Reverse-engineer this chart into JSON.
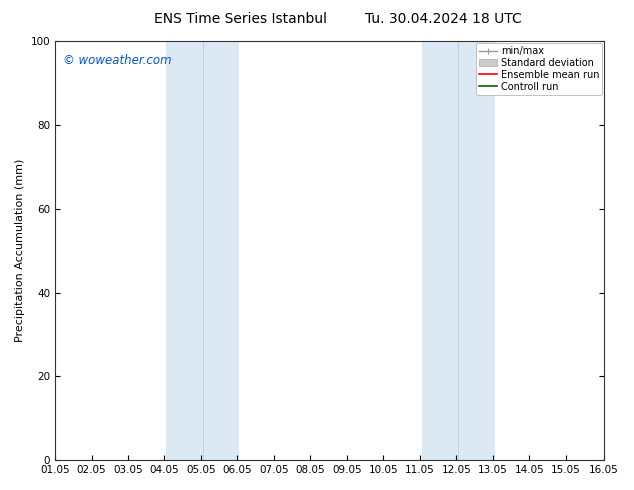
{
  "title_left": "ENS Time Series Istanbul",
  "title_right": "Tu. 30.04.2024 18 UTC",
  "ylabel": "Precipitation Accumulation (mm)",
  "ylim": [
    0,
    100
  ],
  "yticks": [
    0,
    20,
    40,
    60,
    80,
    100
  ],
  "x_start": 1.0,
  "x_end": 16.05,
  "xtick_labels": [
    "01.05",
    "02.05",
    "03.05",
    "04.05",
    "05.05",
    "06.05",
    "07.05",
    "08.05",
    "09.05",
    "10.05",
    "11.05",
    "12.05",
    "13.05",
    "14.05",
    "15.05",
    "16.05"
  ],
  "xtick_positions": [
    1.0,
    2.0,
    3.0,
    4.0,
    5.0,
    6.0,
    7.0,
    8.0,
    9.0,
    10.0,
    11.0,
    12.0,
    13.0,
    14.0,
    15.0,
    16.05
  ],
  "shaded_regions": [
    {
      "xmin": 4.05,
      "xmax": 5.05,
      "color": "#dce9f5"
    },
    {
      "xmin": 5.05,
      "xmax": 6.05,
      "color": "#dce9f5"
    },
    {
      "xmin": 11.05,
      "xmax": 12.05,
      "color": "#dce9f5"
    },
    {
      "xmin": 12.05,
      "xmax": 13.05,
      "color": "#dce9f5"
    }
  ],
  "shaded_dividers": [
    5.05,
    12.05
  ],
  "watermark_text": "© woweather.com",
  "watermark_color": "#0055cc",
  "background_color": "#ffffff",
  "legend_entries": [
    {
      "label": "min/max",
      "color": "#999999",
      "lw": 1.0
    },
    {
      "label": "Standard deviation",
      "color": "#cccccc",
      "lw": 5
    },
    {
      "label": "Ensemble mean run",
      "color": "#ff0000",
      "lw": 1.2
    },
    {
      "label": "Controll run",
      "color": "#006600",
      "lw": 1.2
    }
  ],
  "title_fontsize": 10,
  "axis_label_fontsize": 8,
  "tick_fontsize": 7.5,
  "legend_fontsize": 7,
  "watermark_fontsize": 8.5
}
